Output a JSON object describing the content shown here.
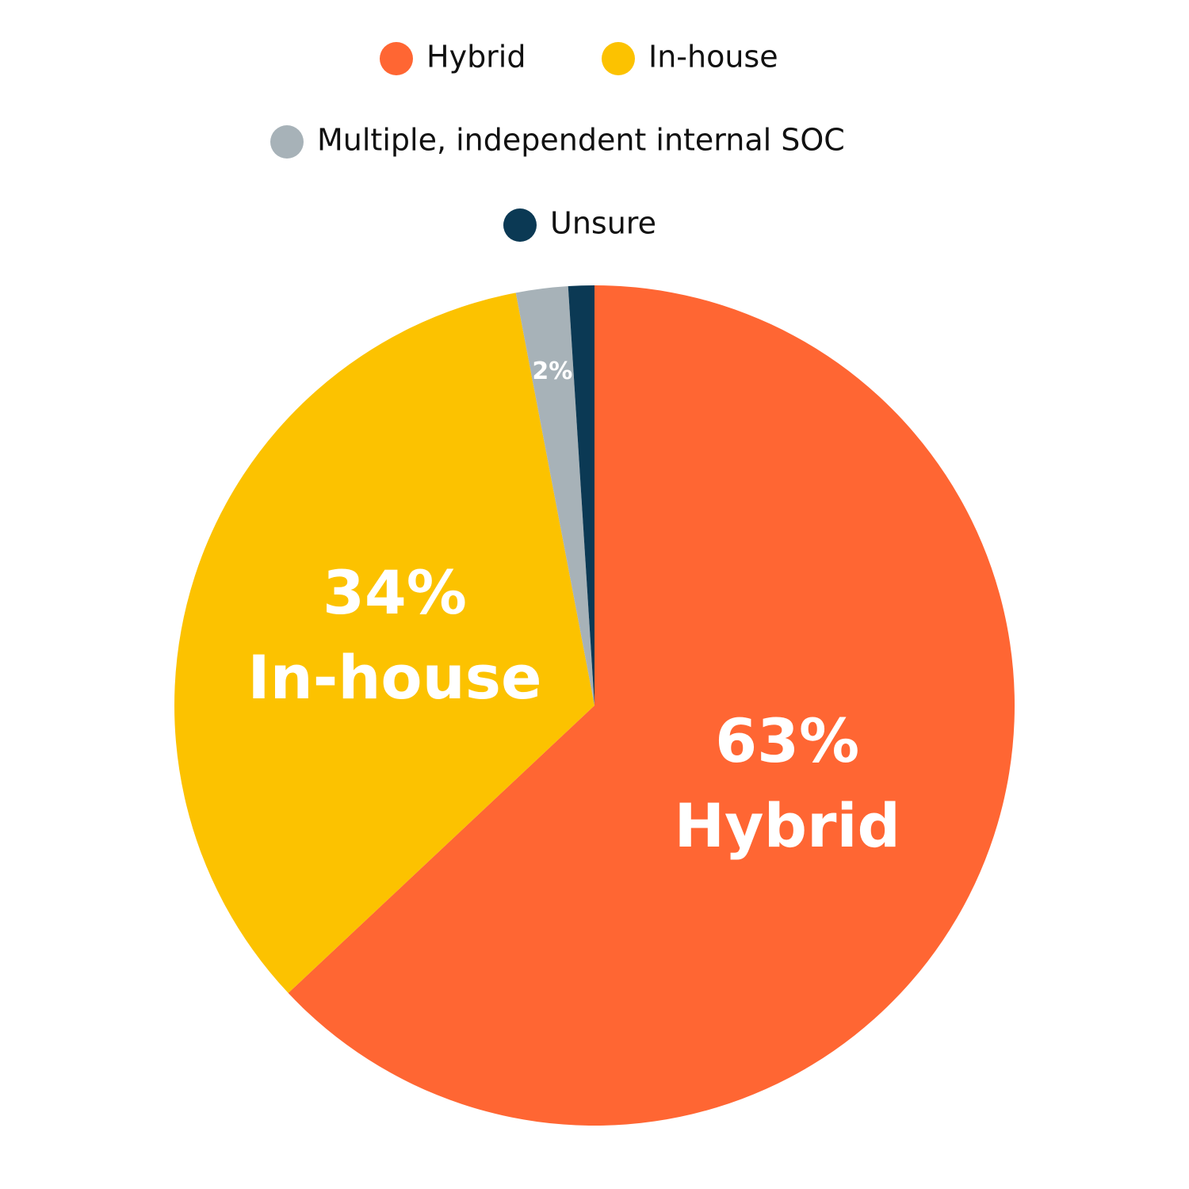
{
  "chart_data": {
    "type": "pie",
    "categories": [
      "Hybrid",
      "In-house",
      "Multiple, independent internal SOC",
      "Unsure"
    ],
    "values": [
      63,
      34,
      2,
      1
    ],
    "value_labels": [
      "63%",
      "34%",
      "2%",
      null
    ],
    "colors": [
      "#ff6633",
      "#fcc200",
      "#a7b2b8",
      "#0b3954"
    ]
  }
}
